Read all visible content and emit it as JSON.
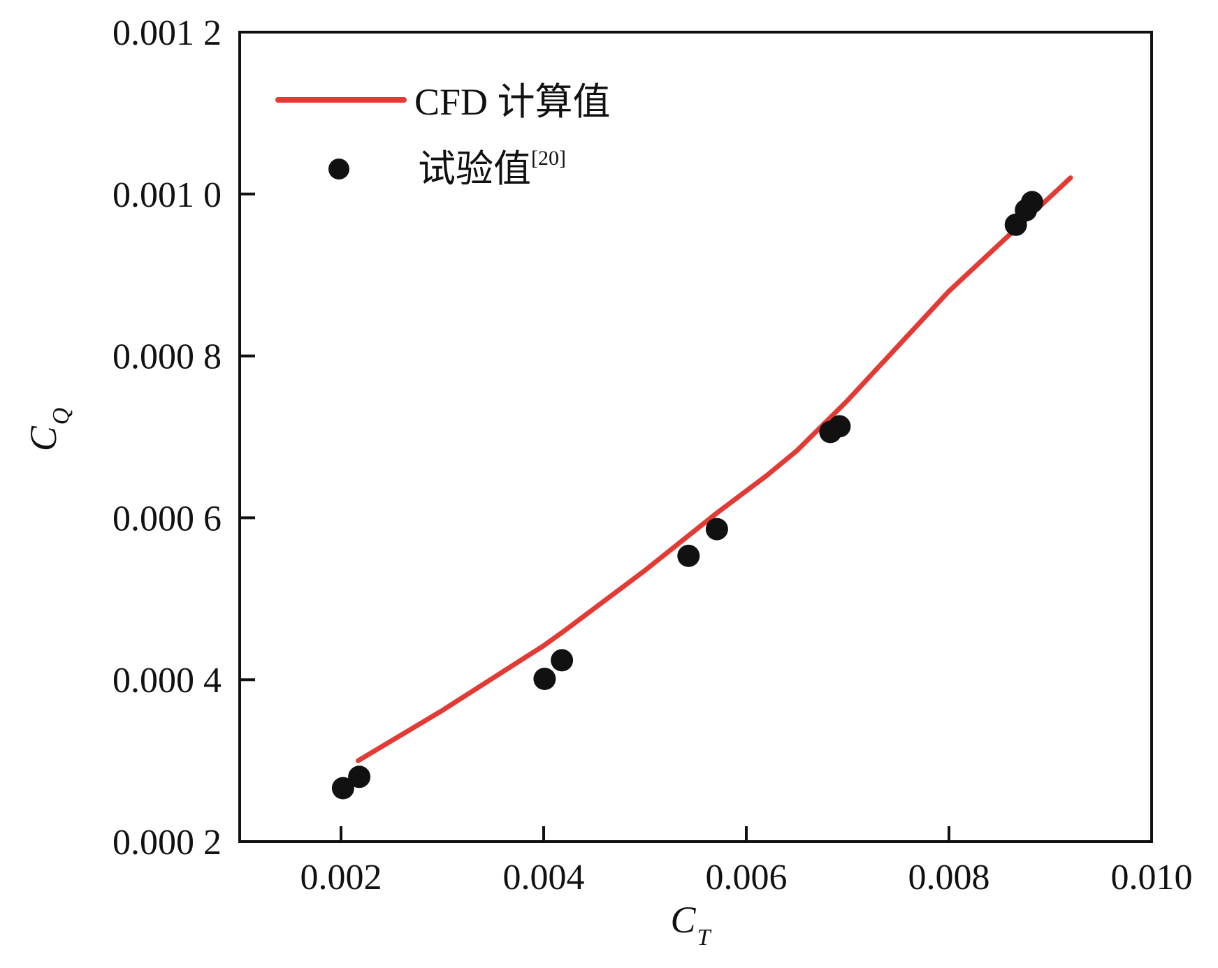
{
  "chart_data": {
    "type": "line",
    "xlabel": "C",
    "xlabel_sub": "T",
    "ylabel": "C",
    "ylabel_sub": "Q",
    "xlim": [
      0.001,
      0.01
    ],
    "ylim": [
      0.0002,
      0.0012
    ],
    "x_ticks": [
      0.002,
      0.004,
      0.006,
      0.008,
      0.01
    ],
    "x_tick_labels": [
      "0.002",
      "0.004",
      "0.006",
      "0.008",
      "0.010"
    ],
    "y_ticks": [
      0.0002,
      0.0004,
      0.0006,
      0.0008,
      0.001,
      0.0012
    ],
    "y_tick_labels": [
      "0.000 2",
      "0.000 4",
      "0.000 6",
      "0.000 8",
      "0.001 0",
      "0.001 2"
    ],
    "grid": false,
    "legend_position": "top-left",
    "colors": {
      "cfd": "#e23a34",
      "exp": "#111111",
      "axes": "#111111"
    },
    "series": [
      {
        "name": "CFD 计算值",
        "kind": "line",
        "x": [
          0.00217,
          0.003,
          0.004,
          0.0042,
          0.005,
          0.0057,
          0.0062,
          0.0065,
          0.007,
          0.008,
          0.0092
        ],
        "y": [
          0.0003,
          0.000362,
          0.000442,
          0.00046,
          0.000535,
          0.000605,
          0.000652,
          0.000683,
          0.000745,
          0.00088,
          0.00102
        ]
      },
      {
        "name": "试验值",
        "name_sup": "[20]",
        "kind": "scatter",
        "x": [
          0.00202,
          0.00218,
          0.00401,
          0.00418,
          0.00543,
          0.00571,
          0.00683,
          0.00692,
          0.00866,
          0.00876,
          0.00882
        ],
        "y": [
          0.000266,
          0.00028,
          0.000401,
          0.000424,
          0.000553,
          0.000586,
          0.000706,
          0.000713,
          0.000962,
          0.00098,
          0.00099
        ]
      }
    ]
  }
}
